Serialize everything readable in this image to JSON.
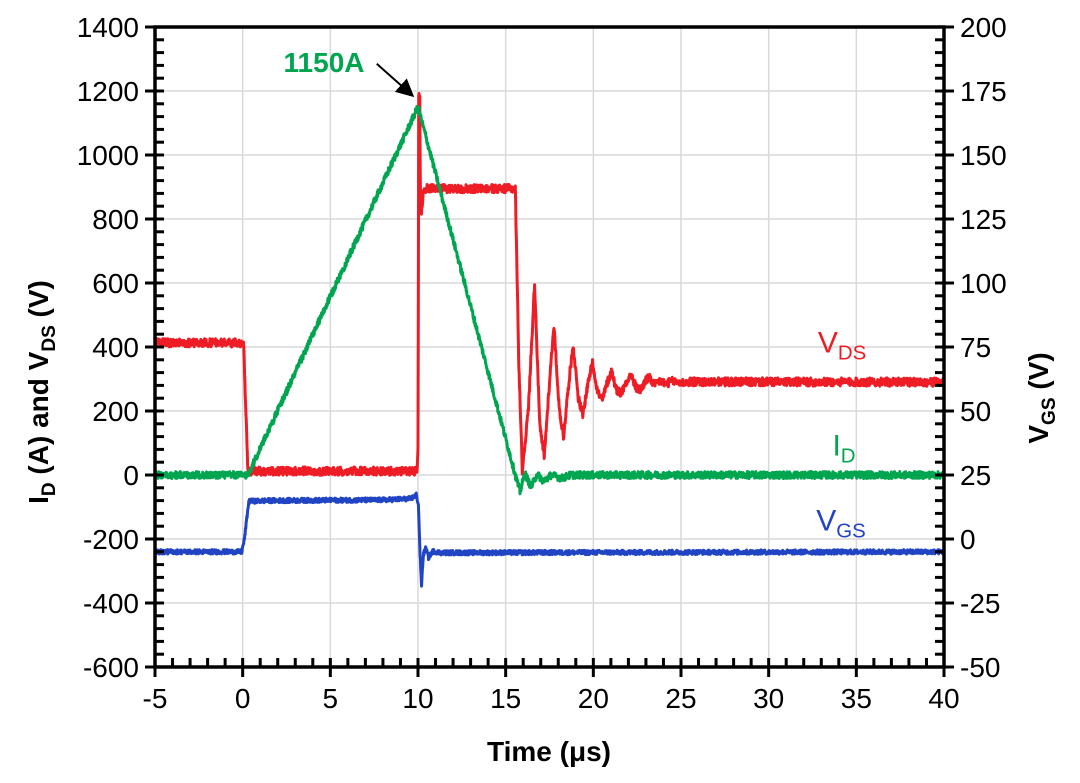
{
  "chart_data": {
    "type": "line",
    "title": "",
    "xlabel": "Time (μs)",
    "ylabel_left": "ID (A) and VDS (V)",
    "ylabel_right": "VGS (V)",
    "x_range": [
      -5,
      40
    ],
    "y_left_range": [
      -600,
      1400
    ],
    "y_right_range": [
      -50,
      200
    ],
    "x_ticks": [
      -5,
      0,
      5,
      10,
      15,
      20,
      25,
      30,
      35,
      40
    ],
    "x_minor_step": 1,
    "y_left_ticks": [
      -600,
      -400,
      -200,
      0,
      200,
      400,
      600,
      800,
      1000,
      1200,
      1400
    ],
    "y_left_minor_step": 40,
    "y_right_ticks": [
      -50,
      -25,
      0,
      25,
      50,
      75,
      100,
      125,
      150,
      175,
      200
    ],
    "y_right_minor_step": 5,
    "grid": true,
    "grid_color": "#d9d9d9",
    "axis_color": "#000000",
    "annotation": {
      "text": "1150A",
      "color": "#00a550",
      "arrow_from_data": [
        7.65,
        1285
      ],
      "arrow_to_data": [
        9.7,
        1185
      ]
    },
    "series": [
      {
        "name": "V_DS",
        "axis": "left",
        "color": "#ee1c25",
        "noise": 13,
        "points": [
          [
            -5,
            413
          ],
          [
            0.05,
            413
          ],
          [
            0.3,
            12
          ],
          [
            9.96,
            12
          ],
          [
            10.0,
            80
          ],
          [
            10.04,
            1180
          ],
          [
            10.1,
            1180
          ],
          [
            10.14,
            850
          ],
          [
            10.2,
            827
          ],
          [
            10.32,
            895
          ],
          [
            15.55,
            895
          ],
          [
            15.75,
            350
          ],
          [
            15.95,
            15
          ],
          [
            16.3,
            210
          ],
          [
            16.65,
            600
          ],
          [
            16.95,
            150
          ],
          [
            17.2,
            57
          ],
          [
            17.5,
            290
          ],
          [
            17.75,
            470
          ],
          [
            18.05,
            210
          ],
          [
            18.3,
            118
          ],
          [
            18.6,
            290
          ],
          [
            18.85,
            405
          ],
          [
            19.15,
            240
          ],
          [
            19.4,
            185
          ],
          [
            19.7,
            290
          ],
          [
            19.95,
            350
          ],
          [
            20.25,
            260
          ],
          [
            20.5,
            232
          ],
          [
            20.8,
            290
          ],
          [
            21.05,
            325
          ],
          [
            21.3,
            268
          ],
          [
            21.6,
            255
          ],
          [
            21.9,
            295
          ],
          [
            22.15,
            312
          ],
          [
            22.45,
            272
          ],
          [
            22.7,
            265
          ],
          [
            23.0,
            298
          ],
          [
            23.2,
            303
          ],
          [
            23.5,
            280
          ],
          [
            23.8,
            295
          ],
          [
            24.1,
            285
          ],
          [
            24.5,
            293
          ],
          [
            25.0,
            288
          ],
          [
            25.5,
            291
          ],
          [
            40,
            290
          ]
        ]
      },
      {
        "name": "I_D",
        "axis": "left",
        "color": "#00a550",
        "noise": 11,
        "points": [
          [
            -5,
            0
          ],
          [
            0.3,
            0
          ],
          [
            10.0,
            1150
          ],
          [
            15.55,
            0
          ],
          [
            15.82,
            -52
          ],
          [
            16.1,
            5
          ],
          [
            16.45,
            -38
          ],
          [
            16.8,
            3
          ],
          [
            17.15,
            -20
          ],
          [
            17.6,
            0
          ],
          [
            18.2,
            -10
          ],
          [
            18.7,
            0
          ],
          [
            40,
            0
          ]
        ]
      },
      {
        "name": "V_GS",
        "axis": "left",
        "color": "#2144c4",
        "noise": 7,
        "points": [
          [
            -5,
            -240
          ],
          [
            -0.05,
            -240
          ],
          [
            0.1,
            -200
          ],
          [
            0.35,
            -82
          ],
          [
            1.5,
            -80
          ],
          [
            8.0,
            -78
          ],
          [
            9.6,
            -74
          ],
          [
            9.9,
            -62
          ],
          [
            10.02,
            -90
          ],
          [
            10.12,
            -250
          ],
          [
            10.2,
            -345
          ],
          [
            10.3,
            -250
          ],
          [
            10.45,
            -228
          ],
          [
            10.6,
            -258
          ],
          [
            10.85,
            -238
          ],
          [
            11.3,
            -243
          ],
          [
            40,
            -240
          ]
        ]
      }
    ]
  },
  "axis_titles": {
    "left": {
      "p1": "I",
      "s1": "D",
      "p2": " (A) and V",
      "s2": "DS",
      "p3": " (V)"
    },
    "right": {
      "p1": "V",
      "s1": "GS",
      "p2": " (V)"
    },
    "bottom": {
      "p1": "Time (μs)"
    }
  },
  "series_labels": {
    "vds": {
      "main": "V",
      "sub": "DS",
      "color": "#ee1c25"
    },
    "id": {
      "main": "I",
      "sub": "D",
      "color": "#00a550"
    },
    "vgs": {
      "main": "V",
      "sub": "GS",
      "color": "#2144c4"
    }
  },
  "annotation": {
    "peak_label": "1150A"
  }
}
